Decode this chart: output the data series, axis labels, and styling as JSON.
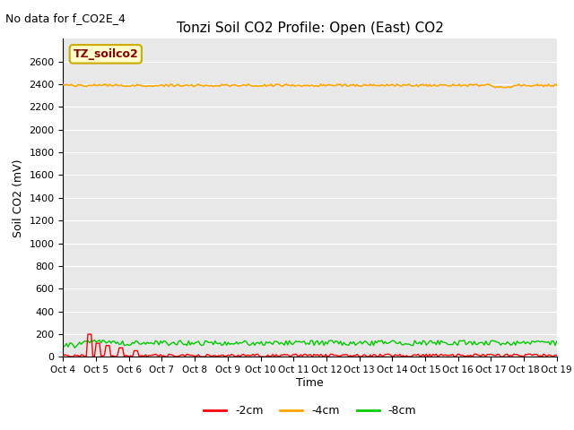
{
  "title": "Tonzi Soil CO2 Profile: Open (East) CO2",
  "no_data_text": "No data for f_CO2E_4",
  "ylabel": "Soil CO2 (mV)",
  "xlabel": "Time",
  "ylim": [
    0,
    2800
  ],
  "yticks": [
    0,
    200,
    400,
    600,
    800,
    1000,
    1200,
    1400,
    1600,
    1800,
    2000,
    2200,
    2400,
    2600
  ],
  "xticklabels": [
    "Oct 4",
    "Oct 5",
    "Oct 6",
    "Oct 7",
    "Oct 8",
    "Oct 9",
    "Oct 10",
    "Oct 11",
    "Oct 12",
    "Oct 13",
    "Oct 14",
    "Oct 15",
    "Oct 16",
    "Oct 17",
    "Oct 18",
    "Oct 19"
  ],
  "num_points": 300,
  "color_2cm": "#ff0000",
  "color_4cm": "#ffa500",
  "color_8cm": "#00cc00",
  "bg_color": "#e8e8e8",
  "legend_label_text": "TZ_soilco2",
  "legend_bg": "#ffffcc",
  "legend_border": "#ccaa00",
  "line_4cm_base": 2390,
  "line_8cm_base": 120
}
